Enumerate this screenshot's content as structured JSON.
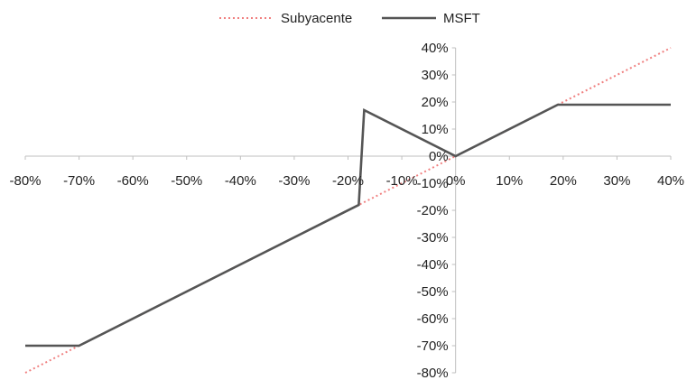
{
  "chart_data": {
    "type": "line",
    "title": "",
    "xlabel": "",
    "ylabel": "",
    "xlim": [
      -0.8,
      0.4
    ],
    "ylim": [
      -0.8,
      0.4
    ],
    "x_ticks": [
      "-80%",
      "-70%",
      "-60%",
      "-50%",
      "-40%",
      "-30%",
      "-20%",
      "-10%",
      "0%",
      "10%",
      "20%",
      "30%",
      "40%"
    ],
    "y_ticks": [
      "40%",
      "30%",
      "20%",
      "10%",
      "0%",
      "-10%",
      "-20%",
      "-30%",
      "-40%",
      "-50%",
      "-60%",
      "-70%",
      "-80%"
    ],
    "grid": false,
    "legend_position": "top-center",
    "series": [
      {
        "name": "Subyacente",
        "style": "dotted",
        "color": "#f08080",
        "x": [
          -0.8,
          0.4
        ],
        "y": [
          -0.8,
          0.4
        ]
      },
      {
        "name": "MSFT",
        "style": "solid",
        "color": "#555555",
        "x": [
          -0.8,
          -0.7,
          -0.18,
          -0.17,
          0.0,
          0.19,
          0.4
        ],
        "y": [
          -0.7,
          -0.7,
          -0.18,
          0.17,
          0.0,
          0.19,
          0.19
        ]
      }
    ]
  }
}
